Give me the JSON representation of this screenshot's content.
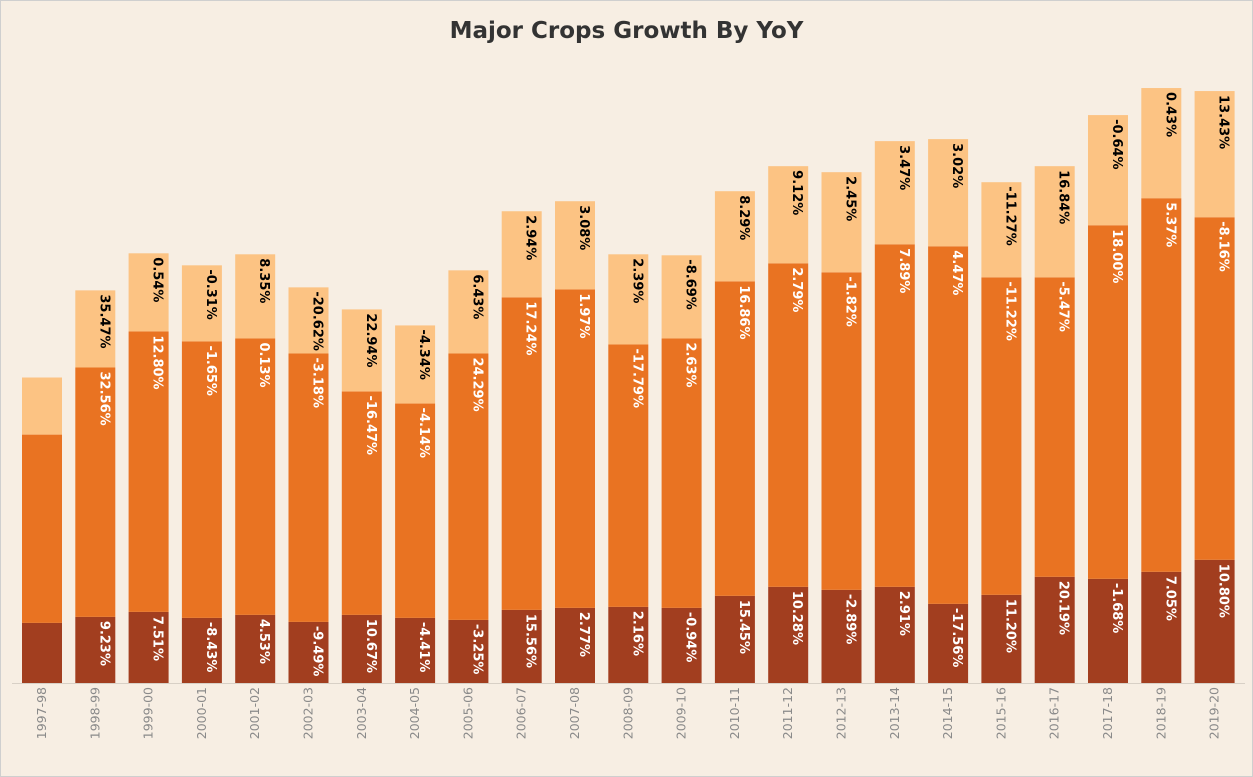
{
  "colors": {
    "background": "#f7eee3",
    "bottom_segment": "#a23e1f",
    "middle_segment": "#e97322",
    "top_segment": "#fcc383",
    "axis_text": "#8a8a8a"
  },
  "chart_data": {
    "type": "bar",
    "stacked": true,
    "title": "Major Crops Growth By YoY",
    "xlabel": "",
    "ylabel": "",
    "categories": [
      "1997-98",
      "1998-99",
      "1999-00",
      "2000-01",
      "2001-02",
      "2002-03",
      "2003-04",
      "2004-05",
      "2005-06",
      "2006-07",
      "2007-08",
      "2008-09",
      "2009-10",
      "2010-11",
      "2011-12",
      "2012-13",
      "2013-14",
      "2014-15",
      "2015-16",
      "2016-17",
      "2017-18",
      "2018-19",
      "2019-20"
    ],
    "series": [
      {
        "values": [
          60,
          66,
          71,
          65,
          68,
          61,
          68,
          65,
          63,
          73,
          75,
          76,
          75,
          87,
          96,
          93,
          96,
          79,
          88,
          106,
          104,
          111,
          123
        ],
        "labels": [
          "",
          "9.23%",
          "7.51%",
          "-8.43%",
          "4.53%",
          "-9.49%",
          "10.67%",
          "-4.41%",
          "-3.25%",
          "15.56%",
          "2.77%",
          "2.16%",
          "-0.94%",
          "15.45%",
          "10.28%",
          "-2.89%",
          "2.91%",
          "-17.56%",
          "11.20%",
          "20.19%",
          "-1.68%",
          "7.05%",
          "10.80%"
        ]
      },
      {
        "values": [
          188,
          249,
          280,
          276,
          276,
          268,
          223,
          214,
          266,
          312,
          318,
          262,
          269,
          314,
          323,
          317,
          342,
          357,
          317,
          299,
          353,
          373,
          342
        ],
        "labels": [
          "",
          "32.56%",
          "12.80%",
          "-1.65%",
          "0.13%",
          "-3.18%",
          "-16.47%",
          "-4.14%",
          "24.29%",
          "17.24%",
          "1.97%",
          "-17.79%",
          "2.63%",
          "16.86%",
          "2.79%",
          "-1.82%",
          "7.89%",
          "4.47%",
          "-11.22%",
          "-5.47%",
          "18.00%",
          "5.37%",
          "-8.16%"
        ]
      },
      {
        "values": [
          57,
          77,
          78,
          76,
          84,
          66,
          82,
          78,
          83,
          86,
          88,
          90,
          83,
          90,
          97,
          100,
          103,
          107,
          95,
          111,
          110,
          110,
          126
        ],
        "labels": [
          "",
          "35.47%",
          "0.54%",
          "-0.31%",
          "8.35%",
          "-20.62%",
          "22.94%",
          "-4.34%",
          "6.43%",
          "2.94%",
          "3.08%",
          "2.39%",
          "-8.69%",
          "8.29%",
          "9.12%",
          "2.45%",
          "3.47%",
          "3.02%",
          "-11.27%",
          "16.84%",
          "-0.64%",
          "0.43%",
          "13.43%"
        ]
      }
    ],
    "ylim": [
      0,
      620
    ],
    "grid": false,
    "legend": "none"
  }
}
